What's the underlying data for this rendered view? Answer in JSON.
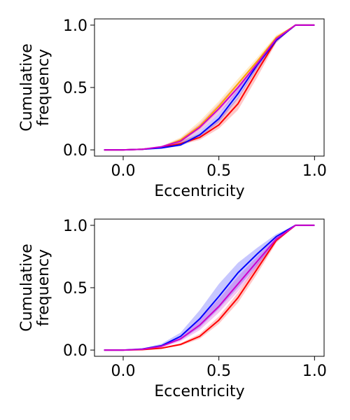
{
  "chart_data": [
    {
      "type": "line",
      "xlabel": "Eccentricity",
      "ylabel_lines": [
        "Cumulative",
        "frequency"
      ],
      "xlim": [
        -0.15,
        1.05
      ],
      "ylim": [
        -0.05,
        1.05
      ],
      "xticks": [
        0.0,
        0.5,
        1.0
      ],
      "xtick_labels": [
        "0.0",
        "0.5",
        "1.0"
      ],
      "yticks": [
        0.0,
        0.5,
        1.0
      ],
      "ytick_labels": [
        "0.0",
        "0.5",
        "1.0"
      ],
      "grid": false,
      "x": [
        -0.1,
        0.0,
        0.1,
        0.2,
        0.3,
        0.4,
        0.5,
        0.6,
        0.7,
        0.8,
        0.9,
        1.0
      ],
      "series": [
        {
          "color": "#ffa500",
          "values": [
            0,
            0,
            0.005,
            0.02,
            0.08,
            0.19,
            0.35,
            0.53,
            0.71,
            0.9,
            1.0,
            1.0
          ],
          "band_low": [
            0,
            0,
            0.003,
            0.015,
            0.06,
            0.16,
            0.31,
            0.49,
            0.68,
            0.88,
            1.0,
            1.0
          ],
          "band_high": [
            0,
            0,
            0.008,
            0.03,
            0.1,
            0.23,
            0.39,
            0.57,
            0.74,
            0.92,
            1.0,
            1.0
          ]
        },
        {
          "color": "#ff0000",
          "values": [
            0,
            0,
            0.005,
            0.02,
            0.05,
            0.1,
            0.2,
            0.37,
            0.63,
            0.88,
            1.0,
            1.0
          ],
          "band_low": [
            0,
            0,
            0.003,
            0.015,
            0.04,
            0.08,
            0.17,
            0.32,
            0.58,
            0.86,
            1.0,
            1.0
          ],
          "band_high": [
            0,
            0,
            0.008,
            0.025,
            0.07,
            0.13,
            0.25,
            0.42,
            0.67,
            0.9,
            1.0,
            1.0
          ]
        },
        {
          "color": "#0000ff",
          "values": [
            0,
            0,
            0.005,
            0.015,
            0.04,
            0.12,
            0.25,
            0.45,
            0.68,
            0.88,
            1.0,
            1.0
          ],
          "band_low": [
            0,
            0,
            0.003,
            0.01,
            0.03,
            0.1,
            0.22,
            0.41,
            0.65,
            0.86,
            1.0,
            1.0
          ],
          "band_high": [
            0,
            0,
            0.008,
            0.02,
            0.06,
            0.15,
            0.29,
            0.49,
            0.71,
            0.9,
            1.0,
            1.0
          ]
        },
        {
          "color": "#cc00cc",
          "values": [
            0,
            0,
            0.005,
            0.025,
            0.07,
            0.18,
            0.33,
            0.5,
            0.69,
            0.89,
            1.0,
            1.0
          ],
          "band_low": [
            0,
            0,
            0.003,
            0.02,
            0.06,
            0.15,
            0.29,
            0.46,
            0.66,
            0.87,
            1.0,
            1.0
          ],
          "band_high": [
            0,
            0,
            0.008,
            0.03,
            0.09,
            0.21,
            0.37,
            0.54,
            0.72,
            0.91,
            1.0,
            1.0
          ]
        }
      ]
    },
    {
      "type": "line",
      "xlabel": "Eccentricity",
      "ylabel_lines": [
        "Cumulative",
        "frequency"
      ],
      "xlim": [
        -0.15,
        1.05
      ],
      "ylim": [
        -0.05,
        1.05
      ],
      "xticks": [
        0.0,
        0.5,
        1.0
      ],
      "xtick_labels": [
        "0.0",
        "0.5",
        "1.0"
      ],
      "yticks": [
        0.0,
        0.5,
        1.0
      ],
      "ytick_labels": [
        "0.0",
        "0.5",
        "1.0"
      ],
      "grid": false,
      "x": [
        -0.1,
        0.0,
        0.1,
        0.2,
        0.3,
        0.4,
        0.5,
        0.6,
        0.7,
        0.8,
        0.9,
        1.0
      ],
      "series": [
        {
          "color": "#ff0000",
          "values": [
            0,
            0,
            0.003,
            0.015,
            0.045,
            0.11,
            0.24,
            0.42,
            0.65,
            0.88,
            1.0,
            1.0
          ],
          "band_low": [
            0,
            0,
            0.002,
            0.01,
            0.035,
            0.09,
            0.21,
            0.38,
            0.61,
            0.86,
            1.0,
            1.0
          ],
          "band_high": [
            0,
            0,
            0.005,
            0.02,
            0.055,
            0.13,
            0.27,
            0.46,
            0.69,
            0.9,
            1.0,
            1.0
          ]
        },
        {
          "color": "#0000ff",
          "values": [
            0,
            0,
            0.008,
            0.035,
            0.11,
            0.25,
            0.43,
            0.62,
            0.77,
            0.91,
            1.0,
            1.0
          ],
          "band_low": [
            0,
            0,
            0.005,
            0.025,
            0.08,
            0.18,
            0.33,
            0.5,
            0.68,
            0.87,
            1.0,
            1.0
          ],
          "band_high": [
            0,
            0,
            0.012,
            0.05,
            0.14,
            0.32,
            0.53,
            0.7,
            0.82,
            0.93,
            1.0,
            1.0
          ]
        },
        {
          "color": "#cc00cc",
          "values": [
            0,
            0,
            0.006,
            0.03,
            0.09,
            0.2,
            0.35,
            0.53,
            0.71,
            0.89,
            1.0,
            1.0
          ],
          "band_low": [
            0,
            0,
            0.004,
            0.02,
            0.07,
            0.16,
            0.3,
            0.47,
            0.66,
            0.87,
            1.0,
            1.0
          ],
          "band_high": [
            0,
            0,
            0.009,
            0.04,
            0.11,
            0.25,
            0.41,
            0.59,
            0.75,
            0.91,
            1.0,
            1.0
          ]
        }
      ]
    }
  ]
}
